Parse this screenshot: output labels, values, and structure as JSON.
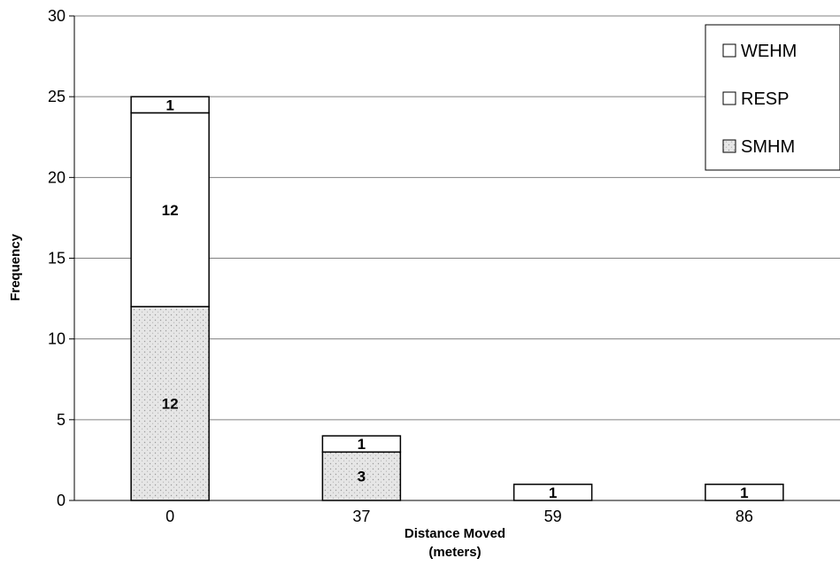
{
  "chart_data": {
    "type": "bar",
    "stacked": true,
    "title": "",
    "xlabel_line1": "Distance Moved",
    "xlabel_line2": "(meters)",
    "ylabel": "Frequency",
    "ylim": [
      0,
      30
    ],
    "yticks": [
      0,
      5,
      10,
      15,
      20,
      25,
      30
    ],
    "categories": [
      "0",
      "37",
      "59",
      "86"
    ],
    "series": [
      {
        "name": "SMHM",
        "values": [
          12,
          3,
          0,
          0
        ],
        "labels": [
          "12",
          "3",
          "",
          ""
        ]
      },
      {
        "name": "RESP",
        "values": [
          12,
          0,
          0,
          0
        ],
        "labels": [
          "12",
          "",
          "",
          ""
        ]
      },
      {
        "name": "WEHM",
        "values": [
          1,
          1,
          1,
          1
        ],
        "labels": [
          "1",
          "1",
          "1",
          "1"
        ]
      }
    ],
    "legend_order": [
      "WEHM",
      "RESP",
      "SMHM"
    ],
    "legend_position": "top-right",
    "grid": true,
    "colors": {
      "SMHM": "#e6e6e6",
      "RESP": "#ffffff",
      "WEHM": "#ffffff",
      "edge": "#000000",
      "grid": "#808080"
    }
  }
}
